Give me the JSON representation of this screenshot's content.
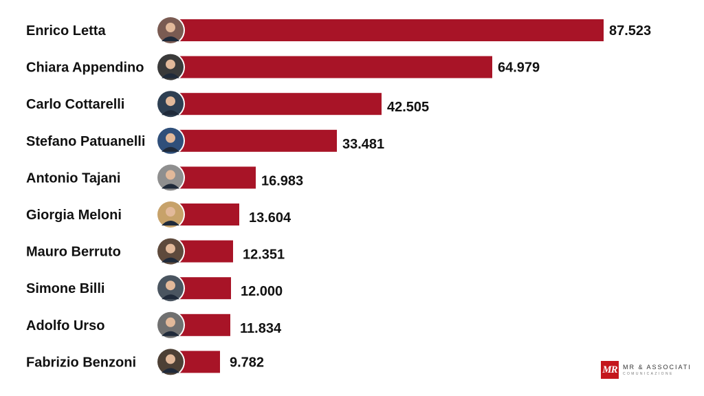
{
  "chart_data": {
    "type": "bar",
    "orientation": "horizontal",
    "categories": [
      "Enrico Letta",
      "Chiara Appendino",
      "Carlo Cottarelli",
      "Stefano Patuanelli",
      "Antonio Tajani",
      "Giorgia Meloni",
      "Mauro Berruto",
      "Simone Billi",
      "Adolfo Urso",
      "Fabrizio Benzoni"
    ],
    "values": [
      87523,
      64979,
      42505,
      33481,
      16983,
      13604,
      12351,
      12000,
      11834,
      9782
    ],
    "value_labels": [
      "87.523",
      "64.979",
      "42.505",
      "33.481",
      "16.983",
      "13.604",
      "12.351",
      "12.000",
      "11.834",
      "9.782"
    ],
    "bar_color": "#a81427",
    "grid": false,
    "legend": "none"
  },
  "branding": {
    "logo_mark": "MR",
    "logo_name": "MR & ASSOCIATI",
    "logo_sub": "COMUNICAZIONE",
    "logo_color": "#c4161c"
  }
}
